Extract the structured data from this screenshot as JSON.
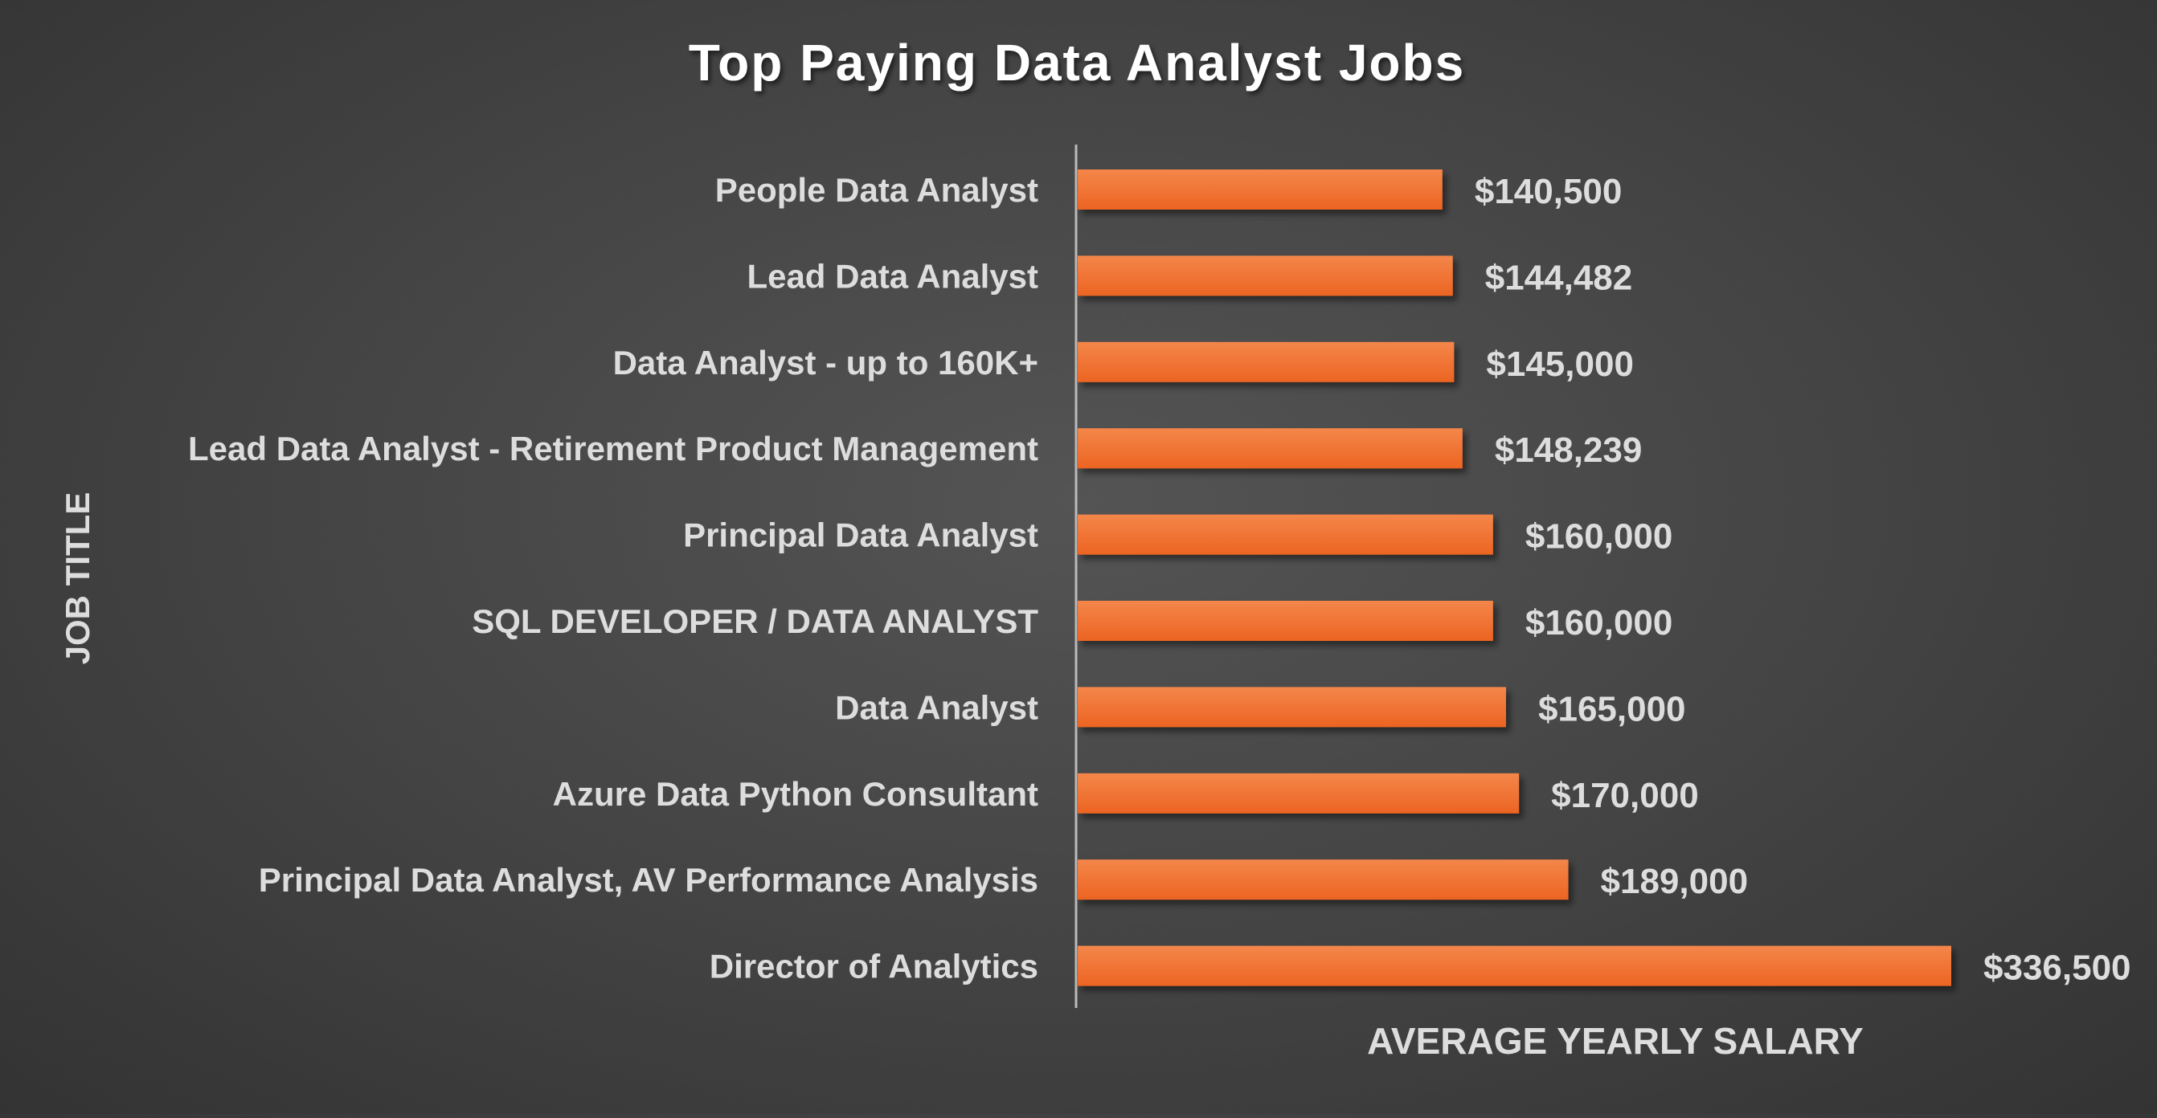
{
  "chart_data": {
    "type": "bar",
    "orientation": "horizontal",
    "title": "Top Paying Data Analyst Jobs",
    "xlabel": "AVERAGE YEARLY SALARY",
    "ylabel": "JOB TITLE",
    "categories": [
      "People Data Analyst",
      "Lead Data Analyst",
      "Data Analyst - up to 160K+",
      "Lead Data Analyst - Retirement Product Management",
      "Principal Data Analyst",
      "SQL DEVELOPER / DATA ANALYST",
      "Data Analyst",
      "Azure Data Python Consultant",
      "Principal Data Analyst, AV Performance Analysis",
      "Director of Analytics"
    ],
    "values": [
      140500,
      144482,
      145000,
      148239,
      160000,
      160000,
      165000,
      170000,
      189000,
      336500
    ],
    "data_labels": [
      "$140,500",
      "$144,482",
      "$145,000",
      "$148,239",
      "$160,000",
      "$160,000",
      "$165,000",
      "$170,000",
      "$189,000",
      "$336,500"
    ],
    "xlim": [
      0,
      336500
    ],
    "grid": false,
    "legend": "none",
    "colors": {
      "bar": "#F06A25",
      "bar_highlight": "#F4864A",
      "text": "#DDDDDD",
      "title": "#FFFFFF",
      "axis_line": "#BBBBBB"
    }
  }
}
